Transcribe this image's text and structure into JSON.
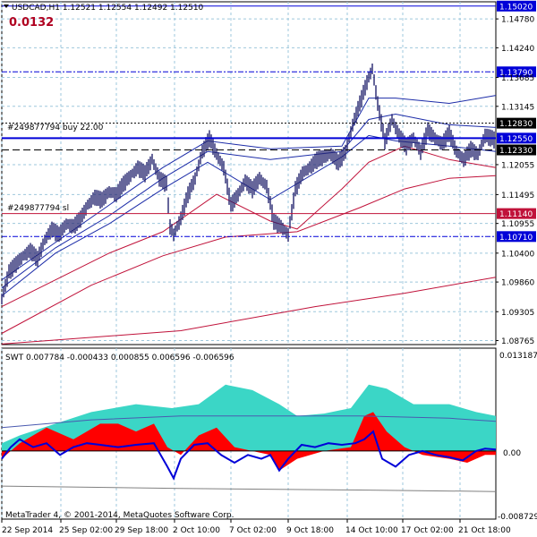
{
  "header": {
    "symbol_line": "USDCAD,H1  1.12521 1.12554 1.12492 1.12510",
    "spread_value": "0.0132"
  },
  "order_labels": {
    "buy": "#249877794 buy 22.00",
    "sl": "#249877794 sl"
  },
  "indicator": {
    "title_line": "SWT 0.007784 -0.000433 0.000855 0.006596 -0.006596",
    "axis_top": "0.013187",
    "axis_zero": "0.00",
    "axis_bottom": "-0.008729"
  },
  "copyright": "MetaTrader 4, © 2001-2014, MetaQuotes Software Corp.",
  "colors": {
    "candles": "#24246e",
    "red_ma": "#c0123a",
    "blue_line": "#0000d8",
    "teal_fill": "#3bd6c6",
    "red_fill": "#ff0000",
    "grid": "#9ec7dc"
  },
  "chart_data": {
    "type": "candlestick",
    "symbol": "USDCAD",
    "timeframe": "H1",
    "ohlc_last": {
      "open": 1.12521,
      "high": 1.12554,
      "low": 1.12492,
      "close": 1.1251
    },
    "x_tick_labels": [
      "22 Sep 2014",
      "25 Sep 02:00",
      "29 Sep 18:00",
      "2 Oct 10:00",
      "7 Oct 02:00",
      "9 Oct 18:00",
      "14 Oct 10:00",
      "17 Oct 02:00",
      "21 Oct 18:00"
    ],
    "y_tick_labels": [
      "1.14780",
      "1.14240",
      "1.13685",
      "1.13145",
      "1.12055",
      "1.11495",
      "1.10955",
      "1.10400",
      "1.09860",
      "1.09305",
      "1.08765"
    ],
    "y_ticks": [
      1.1478,
      1.1424,
      1.13685,
      1.13145,
      1.12055,
      1.11495,
      1.10955,
      1.104,
      1.0986,
      1.09305,
      1.08765
    ],
    "ylim": [
      1.0869,
      1.151
    ],
    "horizontal_levels": [
      {
        "label": "1.15020",
        "value": 1.1502,
        "style": "solid",
        "color": "#0000d8"
      },
      {
        "label": "1.13790",
        "value": 1.1379,
        "style": "dashdot",
        "color": "#0000d8"
      },
      {
        "label": "1.12830",
        "value": 1.1283,
        "style": "dotted",
        "color": "#000000"
      },
      {
        "label": "1.12550",
        "value": 1.1255,
        "style": "solid-thick",
        "color": "#0000d8"
      },
      {
        "label": "1.12330",
        "value": 1.1233,
        "style": "dashed",
        "color": "#000000"
      },
      {
        "label": "1.11140",
        "value": 1.1114,
        "style": "solid",
        "color": "#c0123a"
      },
      {
        "label": "1.10710",
        "value": 1.1071,
        "style": "dashdot",
        "color": "#0000d8"
      }
    ],
    "price_path": [
      [
        0,
        1.0955
      ],
      [
        8,
        1.1005
      ],
      [
        16,
        1.102
      ],
      [
        24,
        1.1035
      ],
      [
        32,
        1.1045
      ],
      [
        40,
        1.103
      ],
      [
        48,
        1.1065
      ],
      [
        56,
        1.1085
      ],
      [
        64,
        1.1075
      ],
      [
        72,
        1.1095
      ],
      [
        80,
        1.109
      ],
      [
        88,
        1.1105
      ],
      [
        96,
        1.113
      ],
      [
        104,
        1.1145
      ],
      [
        112,
        1.114
      ],
      [
        120,
        1.1155
      ],
      [
        128,
        1.115
      ],
      [
        136,
        1.117
      ],
      [
        144,
        1.1185
      ],
      [
        152,
        1.12
      ],
      [
        160,
        1.119
      ],
      [
        168,
        1.1215
      ],
      [
        176,
        1.118
      ],
      [
        184,
        1.117
      ],
      [
        188,
        1.109
      ],
      [
        192,
        1.1075
      ],
      [
        200,
        1.1105
      ],
      [
        208,
        1.115
      ],
      [
        216,
        1.118
      ],
      [
        224,
        1.123
      ],
      [
        232,
        1.1255
      ],
      [
        240,
        1.1225
      ],
      [
        248,
        1.12
      ],
      [
        256,
        1.113
      ],
      [
        264,
        1.115
      ],
      [
        272,
        1.1175
      ],
      [
        280,
        1.116
      ],
      [
        288,
        1.118
      ],
      [
        296,
        1.1165
      ],
      [
        304,
        1.11
      ],
      [
        312,
        1.109
      ],
      [
        320,
        1.1075
      ],
      [
        328,
        1.116
      ],
      [
        336,
        1.119
      ],
      [
        344,
        1.12
      ],
      [
        352,
        1.1215
      ],
      [
        360,
        1.122
      ],
      [
        368,
        1.1225
      ],
      [
        376,
        1.121
      ],
      [
        384,
        1.123
      ],
      [
        392,
        1.128
      ],
      [
        400,
        1.132
      ],
      [
        408,
        1.136
      ],
      [
        414,
        1.1385
      ],
      [
        420,
        1.132
      ],
      [
        428,
        1.125
      ],
      [
        436,
        1.129
      ],
      [
        444,
        1.126
      ],
      [
        452,
        1.124
      ],
      [
        460,
        1.1255
      ],
      [
        468,
        1.123
      ],
      [
        476,
        1.127
      ],
      [
        484,
        1.1255
      ],
      [
        492,
        1.1245
      ],
      [
        500,
        1.1265
      ],
      [
        508,
        1.123
      ],
      [
        516,
        1.1215
      ],
      [
        524,
        1.1235
      ],
      [
        532,
        1.1225
      ],
      [
        540,
        1.126
      ],
      [
        548,
        1.1255
      ],
      [
        552,
        1.1251
      ]
    ],
    "blue_bands": [
      {
        "name": "upper",
        "points": [
          [
            0,
            1.099
          ],
          [
            60,
            1.106
          ],
          [
            120,
            1.113
          ],
          [
            180,
            1.12
          ],
          [
            230,
            1.125
          ],
          [
            300,
            1.1235
          ],
          [
            380,
            1.124
          ],
          [
            410,
            1.133
          ],
          [
            440,
            1.133
          ],
          [
            500,
            1.132
          ],
          [
            552,
            1.1335
          ]
        ]
      },
      {
        "name": "mid",
        "points": [
          [
            0,
            1.0975
          ],
          [
            60,
            1.105
          ],
          [
            120,
            1.111
          ],
          [
            180,
            1.118
          ],
          [
            230,
            1.123
          ],
          [
            300,
            1.1215
          ],
          [
            380,
            1.123
          ],
          [
            410,
            1.129
          ],
          [
            440,
            1.13
          ],
          [
            500,
            1.128
          ],
          [
            552,
            1.1275
          ]
        ]
      },
      {
        "name": "lower",
        "points": [
          [
            0,
            1.096
          ],
          [
            60,
            1.104
          ],
          [
            120,
            1.1095
          ],
          [
            180,
            1.116
          ],
          [
            230,
            1.121
          ],
          [
            300,
            1.114
          ],
          [
            380,
            1.122
          ],
          [
            410,
            1.126
          ],
          [
            440,
            1.125
          ],
          [
            500,
            1.124
          ],
          [
            552,
            1.123
          ]
        ]
      }
    ],
    "red_lines": [
      {
        "name": "fast",
        "points": [
          [
            0,
            1.094
          ],
          [
            60,
            1.099
          ],
          [
            120,
            1.104
          ],
          [
            180,
            1.108
          ],
          [
            240,
            1.115
          ],
          [
            300,
            1.11
          ],
          [
            330,
            1.1085
          ],
          [
            380,
            1.116
          ],
          [
            410,
            1.121
          ],
          [
            450,
            1.124
          ],
          [
            500,
            1.1215
          ],
          [
            552,
            1.12
          ]
        ]
      },
      {
        "name": "slow",
        "points": [
          [
            0,
            1.089
          ],
          [
            100,
            1.098
          ],
          [
            180,
            1.1035
          ],
          [
            250,
            1.107
          ],
          [
            330,
            1.108
          ],
          [
            400,
            1.1125
          ],
          [
            450,
            1.116
          ],
          [
            500,
            1.118
          ],
          [
            552,
            1.1185
          ]
        ]
      },
      {
        "name": "long",
        "points": [
          [
            0,
            1.087
          ],
          [
            200,
            1.0895
          ],
          [
            350,
            1.094
          ],
          [
            450,
            1.0965
          ],
          [
            552,
            1.0995
          ]
        ]
      }
    ],
    "indicator_panel": {
      "ylim": [
        -0.008729,
        0.013187
      ],
      "teal_area": [
        [
          0,
          0.001
        ],
        [
          20,
          0.002
        ],
        [
          60,
          0.0035
        ],
        [
          100,
          0.005
        ],
        [
          150,
          0.006
        ],
        [
          190,
          0.0055
        ],
        [
          220,
          0.006
        ],
        [
          250,
          0.0085
        ],
        [
          280,
          0.0078
        ],
        [
          310,
          0.006
        ],
        [
          330,
          0.0045
        ],
        [
          360,
          0.0048
        ],
        [
          390,
          0.0055
        ],
        [
          410,
          0.0085
        ],
        [
          430,
          0.008
        ],
        [
          460,
          0.006
        ],
        [
          500,
          0.006
        ],
        [
          530,
          0.005
        ],
        [
          552,
          0.0045
        ]
      ],
      "red_area": [
        [
          0,
          -0.001
        ],
        [
          20,
          0.001
        ],
        [
          50,
          0.003
        ],
        [
          80,
          0.0015
        ],
        [
          110,
          0.0035
        ],
        [
          130,
          0.0035
        ],
        [
          150,
          0.0025
        ],
        [
          170,
          0.0035
        ],
        [
          185,
          0.0005
        ],
        [
          200,
          -0.0005
        ],
        [
          220,
          0.002
        ],
        [
          240,
          0.003
        ],
        [
          260,
          0.0005
        ],
        [
          300,
          -0.0005
        ],
        [
          310,
          -0.0025
        ],
        [
          330,
          -0.001
        ],
        [
          360,
          0.0
        ],
        [
          390,
          0.0005
        ],
        [
          405,
          0.0045
        ],
        [
          415,
          0.005
        ],
        [
          430,
          0.0025
        ],
        [
          450,
          0.0005
        ],
        [
          470,
          -0.0005
        ],
        [
          500,
          -0.001
        ],
        [
          520,
          -0.0015
        ],
        [
          540,
          -0.0005
        ],
        [
          552,
          -0.0005
        ]
      ],
      "blue_osc": [
        [
          0,
          -0.001
        ],
        [
          10,
          0.0005
        ],
        [
          20,
          0.0015
        ],
        [
          35,
          0.0005
        ],
        [
          50,
          0.001
        ],
        [
          65,
          -0.0005
        ],
        [
          80,
          0.0005
        ],
        [
          95,
          0.001
        ],
        [
          110,
          0.0008
        ],
        [
          130,
          0.0005
        ],
        [
          150,
          0.0008
        ],
        [
          170,
          0.001
        ],
        [
          185,
          -0.002
        ],
        [
          192,
          -0.0035
        ],
        [
          200,
          -0.001
        ],
        [
          215,
          0.0008
        ],
        [
          230,
          0.001
        ],
        [
          245,
          -0.0005
        ],
        [
          260,
          -0.0015
        ],
        [
          275,
          -0.0005
        ],
        [
          290,
          -0.001
        ],
        [
          300,
          -0.0005
        ],
        [
          310,
          -0.0025
        ],
        [
          320,
          -0.001
        ],
        [
          335,
          0.0008
        ],
        [
          350,
          0.0005
        ],
        [
          365,
          0.001
        ],
        [
          380,
          0.0008
        ],
        [
          395,
          0.001
        ],
        [
          405,
          0.0015
        ],
        [
          415,
          0.0025
        ],
        [
          425,
          -0.001
        ],
        [
          440,
          -0.002
        ],
        [
          455,
          -0.0005
        ],
        [
          470,
          0.0
        ],
        [
          485,
          -0.0005
        ],
        [
          500,
          -0.0008
        ],
        [
          515,
          -0.0012
        ],
        [
          530,
          0.0
        ],
        [
          540,
          0.0003
        ],
        [
          552,
          0.0002
        ]
      ],
      "slow_line": [
        [
          0,
          0.003
        ],
        [
          100,
          0.004
        ],
        [
          200,
          0.0045
        ],
        [
          300,
          0.0045
        ],
        [
          400,
          0.0045
        ],
        [
          500,
          0.0042
        ],
        [
          552,
          0.0038
        ]
      ],
      "lower_line": [
        [
          0,
          -0.0045
        ],
        [
          200,
          -0.0048
        ],
        [
          400,
          -0.005
        ],
        [
          552,
          -0.0052
        ]
      ]
    }
  }
}
